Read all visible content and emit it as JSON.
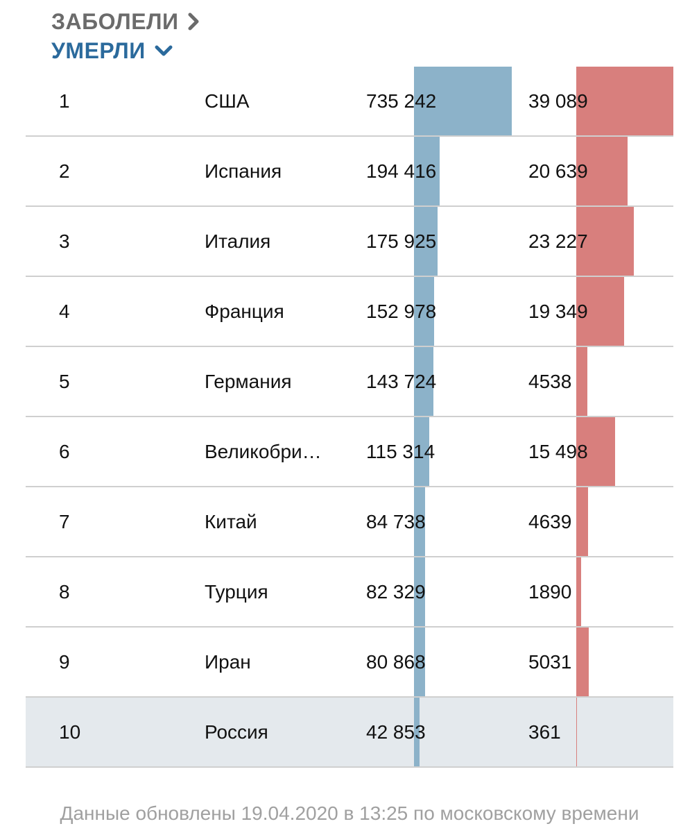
{
  "sort": {
    "cases_label": "ЗАБОЛЕЛИ",
    "deaths_label": "УМЕРЛИ"
  },
  "colors": {
    "cases_bar": "#8cb2c9",
    "deaths_bar": "#d87f7d",
    "highlight_row": "#e4e9ed",
    "active_sort": "#2b6a9c"
  },
  "chart_data": {
    "type": "table",
    "columns": [
      "rank",
      "country",
      "cases",
      "deaths"
    ],
    "highlight_rank": 10,
    "rows": [
      {
        "rank": "1",
        "country": "США",
        "cases_label": "735 242",
        "deaths_label": "39 089",
        "cases": 735242,
        "deaths": 39089
      },
      {
        "rank": "2",
        "country": "Испания",
        "cases_label": "194 416",
        "deaths_label": "20 639",
        "cases": 194416,
        "deaths": 20639
      },
      {
        "rank": "3",
        "country": "Италия",
        "cases_label": "175 925",
        "deaths_label": "23 227",
        "cases": 175925,
        "deaths": 23227
      },
      {
        "rank": "4",
        "country": "Франция",
        "cases_label": "152 978",
        "deaths_label": "19 349",
        "cases": 152978,
        "deaths": 19349
      },
      {
        "rank": "5",
        "country": "Германия",
        "cases_label": "143 724",
        "deaths_label": "4538",
        "cases": 143724,
        "deaths": 4538
      },
      {
        "rank": "6",
        "country": "Великобри…",
        "cases_label": "115 314",
        "deaths_label": "15 498",
        "cases": 115314,
        "deaths": 15498
      },
      {
        "rank": "7",
        "country": "Китай",
        "cases_label": "84 738",
        "deaths_label": "4639",
        "cases": 84738,
        "deaths": 4639
      },
      {
        "rank": "8",
        "country": "Турция",
        "cases_label": "82 329",
        "deaths_label": "1890",
        "cases": 82329,
        "deaths": 1890
      },
      {
        "rank": "9",
        "country": "Иран",
        "cases_label": "80 868",
        "deaths_label": "5031",
        "cases": 80868,
        "deaths": 5031
      },
      {
        "rank": "10",
        "country": "Россия",
        "cases_label": "42 853",
        "deaths_label": "361",
        "cases": 42853,
        "deaths": 361
      }
    ]
  },
  "footer": {
    "updated_text": "Данные обновлены 19.04.2020 в 13:25 по московскому времени"
  }
}
